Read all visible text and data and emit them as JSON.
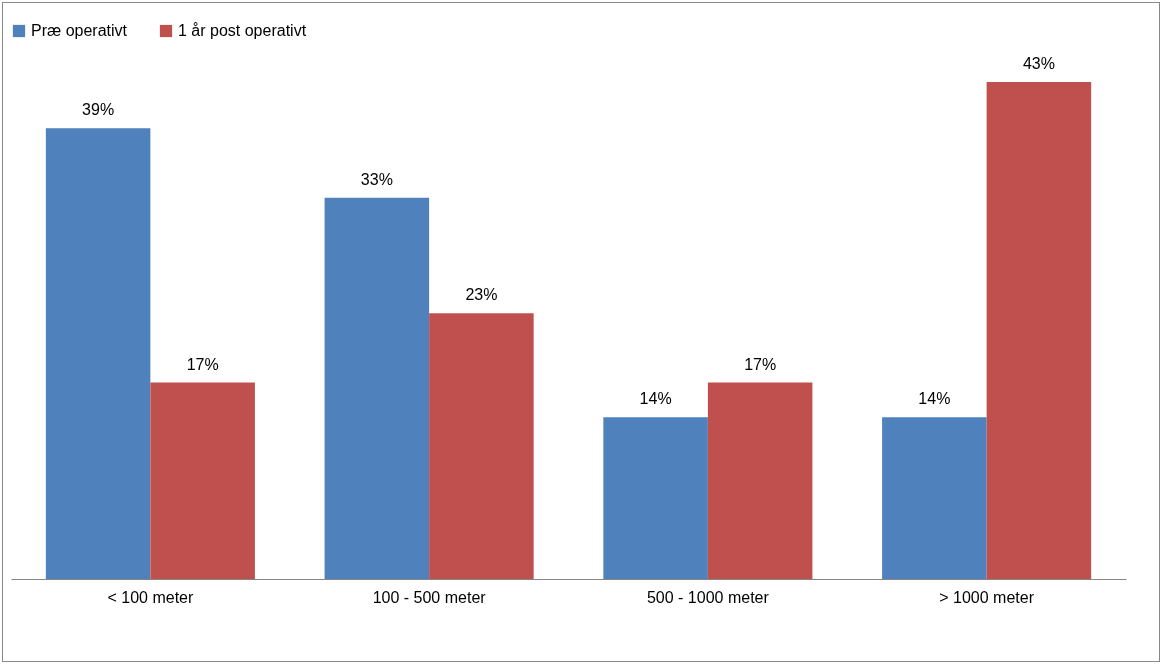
{
  "chart_data": {
    "type": "bar",
    "categories": [
      "< 100 meter",
      "100 - 500 meter",
      "500 - 1000 meter",
      "> 1000 meter"
    ],
    "series": [
      {
        "name": "Præ operativt",
        "color": "#4f81bd",
        "values": [
          39,
          33,
          14,
          14
        ],
        "value_labels": [
          "39%",
          "33%",
          "14%",
          "14%"
        ]
      },
      {
        "name": "1 år post operativt",
        "color": "#c0504d",
        "values": [
          17,
          23,
          17,
          43
        ],
        "value_labels": [
          "17%",
          "23%",
          "17%",
          "43%"
        ]
      }
    ],
    "legend": "top",
    "tick_labels": "x",
    "grid": false
  }
}
